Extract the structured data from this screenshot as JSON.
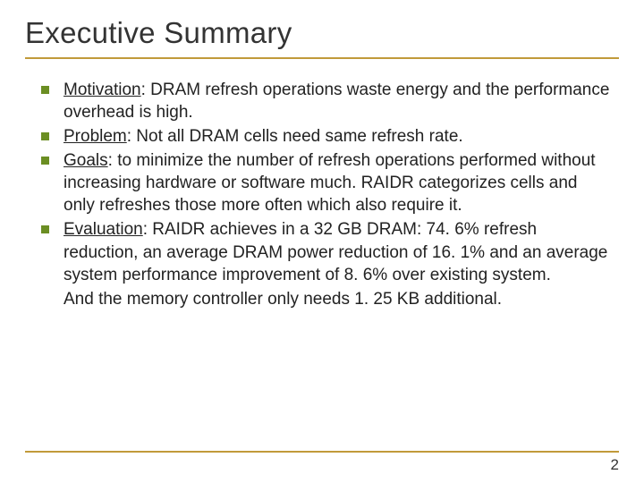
{
  "title": "Executive Summary",
  "accent_color": "#c19a3a",
  "bullet_color": "#6b8e23",
  "text_color": "#222222",
  "title_fontsize": 33,
  "body_fontsize": 19,
  "bullets": [
    {
      "lead": "Motivation",
      "rest": ": DRAM refresh operations waste energy and the performance overhead is high."
    },
    {
      "lead": "Problem",
      "rest": ": Not all DRAM cells need same refresh rate."
    },
    {
      "lead": "Goals",
      "rest": ": to minimize the number of refresh operations performed without increasing hardware or software much. RAIDR categorizes cells and only refreshes those more often which also require it."
    },
    {
      "lead": "Evaluation",
      "rest": ": RAIDR achieves in a 32 GB DRAM: 74. 6% refresh reduction, an average DRAM power reduction of 16. 1% and an average system performance improvement of 8. 6% over existing system."
    }
  ],
  "trailing_note": "And the memory controller only needs 1. 25 KB additional.",
  "page_number": "2"
}
